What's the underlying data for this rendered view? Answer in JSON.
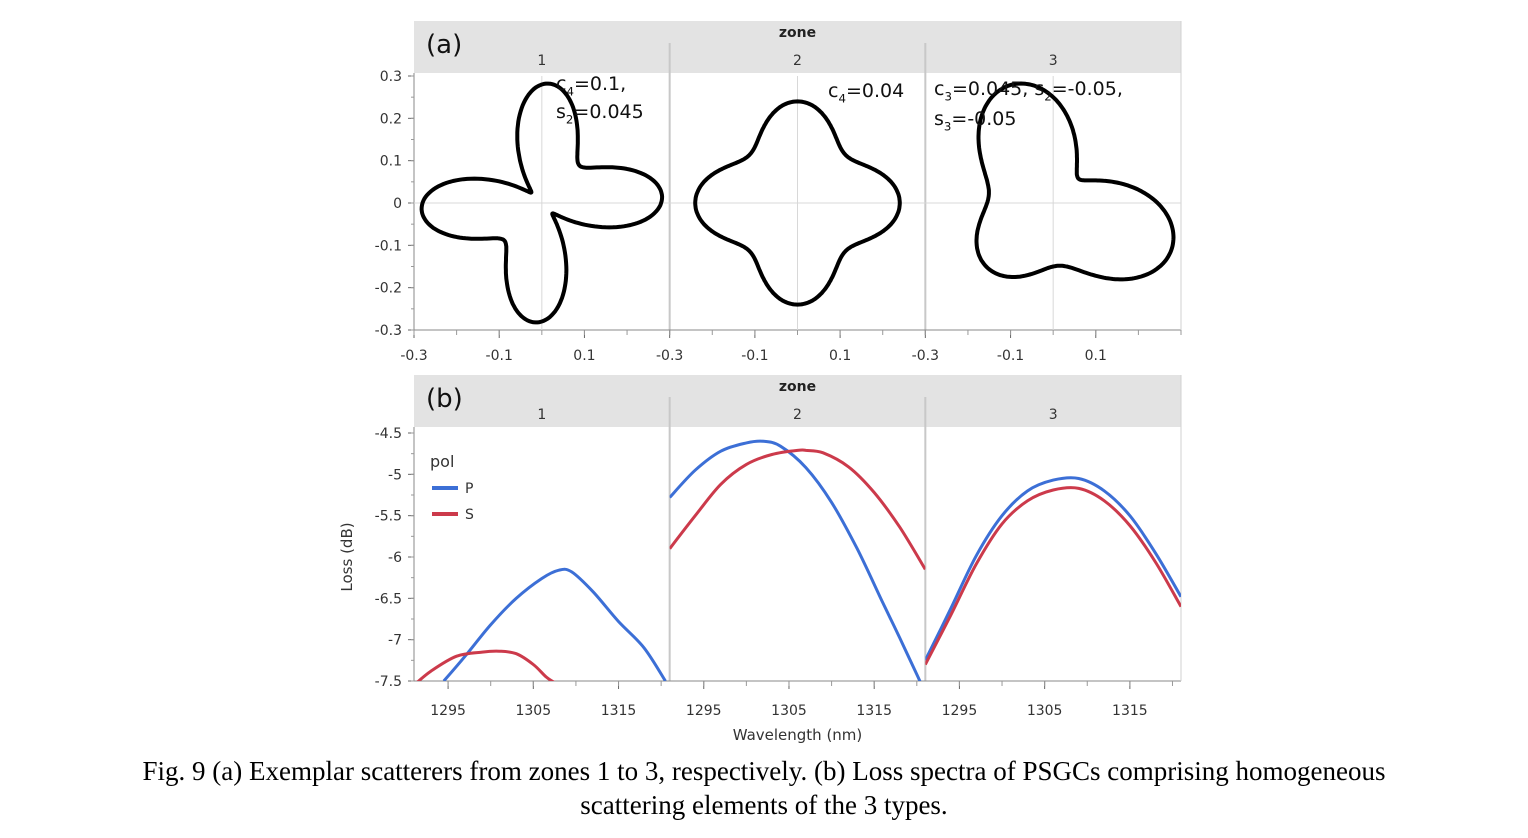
{
  "caption": {
    "line1": "Fig. 9 (a) Exemplar scatterers from zones 1 to 3, respectively.  (b) Loss spectra of PSGCs comprising homogeneous",
    "line2": "scattering elements of the 3 types."
  },
  "colors": {
    "p": "#3c6fd6",
    "s": "#cc3a4b",
    "shape": "#000000",
    "header": "#e3e3e3"
  },
  "chart_data": [
    {
      "type": "scatter",
      "panel_label": "(a)",
      "facet_title": "zone",
      "facets": [
        "1",
        "2",
        "3"
      ],
      "annotations": [
        {
          "lines": [
            {
              "base": "c",
              "sub": "4",
              "rest": "=0.1,"
            },
            {
              "base": "s",
              "sub": "2",
              "rest": "=0.045"
            }
          ]
        },
        {
          "lines": [
            {
              "base": "c",
              "sub": "4",
              "rest": "=0.04"
            }
          ]
        },
        {
          "lines": [
            {
              "base": "c",
              "sub": "3",
              "rest": "=0.045, "
            },
            {
              "base": "s",
              "sub": "3",
              "rest": "=-0.05"
            }
          ],
          "line1_extra": {
            "base": "s",
            "sub": "2",
            "rest": "=-0.05,"
          }
        }
      ],
      "shapes": [
        {
          "r0": 0.18,
          "c": {
            "2": 0.0,
            "3": 0.0,
            "4": 0.1
          },
          "s": {
            "2": 0.045,
            "3": 0.0
          }
        },
        {
          "r0": 0.2,
          "c": {
            "2": 0.0,
            "3": 0.0,
            "4": 0.04
          },
          "s": {
            "2": 0.0,
            "3": 0.0
          }
        },
        {
          "r0": 0.2,
          "c": {
            "2": 0.0,
            "3": 0.045,
            "4": 0.0
          },
          "s": {
            "2": -0.05,
            "3": -0.05
          }
        }
      ],
      "xlim": [
        -0.3,
        0.3
      ],
      "ylim": [
        -0.3,
        0.3
      ],
      "x_ticks": [
        "-0.3",
        "-0.1",
        "0.1"
      ],
      "x_tick_values": [
        -0.3,
        -0.1,
        0.1
      ],
      "y_ticks": [
        "0.3",
        "0.2",
        "0.1",
        "0",
        "-0.1",
        "-0.2",
        "-0.3"
      ],
      "y_tick_values": [
        0.3,
        0.2,
        0.1,
        0,
        -0.1,
        -0.2,
        -0.3
      ]
    },
    {
      "type": "line",
      "panel_label": "(b)",
      "facet_title": "zone",
      "facets": [
        "1",
        "2",
        "3"
      ],
      "xlabel": "Wavelength (nm)",
      "ylabel": "Loss (dB)",
      "xlim": [
        1291,
        1321
      ],
      "ylim": [
        -7.5,
        -4.5
      ],
      "x_ticks": [
        "1295",
        "1305",
        "1315"
      ],
      "x_tick_values": [
        1295,
        1305,
        1315
      ],
      "y_ticks": [
        "-4.5",
        "-5",
        "-5.5",
        "-6",
        "-6.5",
        "-7",
        "-7.5"
      ],
      "y_tick_values": [
        -4.5,
        -5,
        -5.5,
        -6,
        -6.5,
        -7,
        -7.5
      ],
      "legend": {
        "title": "pol",
        "entries": [
          "P",
          "S"
        ],
        "position": "top-left"
      },
      "series": [
        {
          "name": "P",
          "zone": "1",
          "x": [
            1294.5,
            1297,
            1300,
            1303,
            1306,
            1308,
            1309.5,
            1312,
            1315,
            1318,
            1320.5
          ],
          "y": [
            -7.5,
            -7.2,
            -6.82,
            -6.5,
            -6.26,
            -6.16,
            -6.18,
            -6.42,
            -6.78,
            -7.1,
            -7.5
          ]
        },
        {
          "name": "S",
          "zone": "1",
          "x": [
            1291,
            1293,
            1296,
            1299,
            1301,
            1303,
            1305,
            1306.5,
            1307.5
          ],
          "y": [
            -7.55,
            -7.38,
            -7.2,
            -7.15,
            -7.14,
            -7.17,
            -7.3,
            -7.45,
            -7.52
          ]
        },
        {
          "name": "P",
          "zone": "2",
          "x": [
            1291,
            1294,
            1297,
            1300,
            1302,
            1304,
            1307,
            1310,
            1313,
            1316,
            1318,
            1320,
            1321
          ],
          "y": [
            -5.28,
            -4.95,
            -4.72,
            -4.62,
            -4.6,
            -4.66,
            -4.92,
            -5.34,
            -5.9,
            -6.55,
            -6.98,
            -7.42,
            -7.65
          ]
        },
        {
          "name": "S",
          "zone": "2",
          "x": [
            1291,
            1294,
            1297,
            1300,
            1303,
            1306,
            1307,
            1309,
            1312,
            1315,
            1318,
            1321
          ],
          "y": [
            -5.9,
            -5.5,
            -5.12,
            -4.88,
            -4.76,
            -4.71,
            -4.71,
            -4.74,
            -4.91,
            -5.22,
            -5.64,
            -6.15
          ]
        },
        {
          "name": "P",
          "zone": "3",
          "x": [
            1291,
            1294,
            1297,
            1300,
            1303,
            1306,
            1309,
            1312,
            1315,
            1318,
            1321
          ],
          "y": [
            -7.25,
            -6.62,
            -5.98,
            -5.5,
            -5.2,
            -5.07,
            -5.05,
            -5.2,
            -5.5,
            -5.95,
            -6.48
          ]
        },
        {
          "name": "S",
          "zone": "3",
          "x": [
            1291,
            1294,
            1297,
            1300,
            1303,
            1306,
            1309,
            1312,
            1315,
            1318,
            1321
          ],
          "y": [
            -7.3,
            -6.7,
            -6.08,
            -5.6,
            -5.32,
            -5.19,
            -5.17,
            -5.32,
            -5.62,
            -6.06,
            -6.6
          ]
        }
      ]
    }
  ]
}
